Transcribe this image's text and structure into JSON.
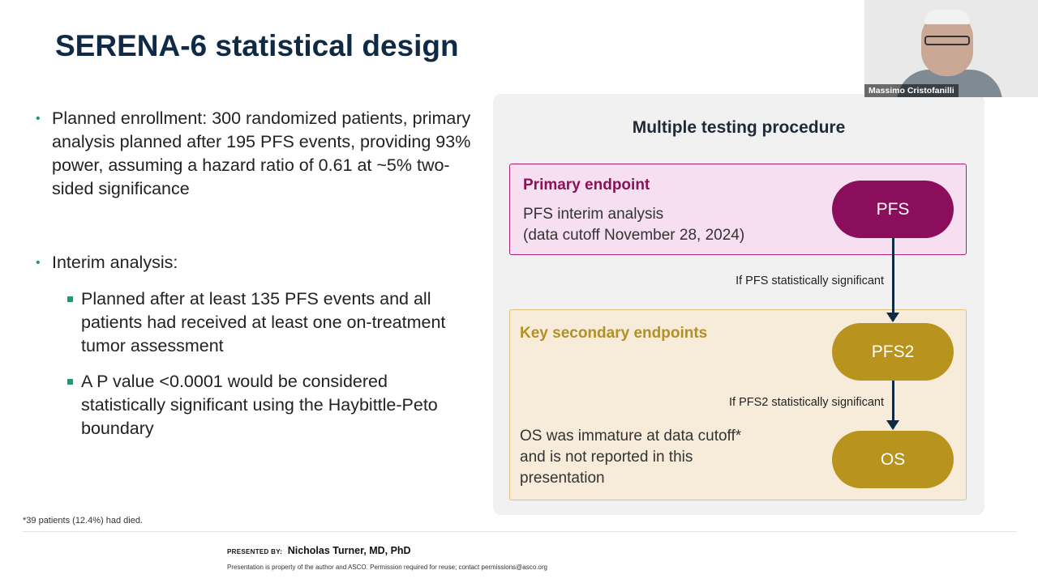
{
  "slide": {
    "title": "SERENA-6 statistical design",
    "bullets": {
      "b1": "Planned enrollment: 300 randomized patients, primary analysis planned after 195 PFS events, providing 93% power, assuming a hazard ratio of 0.61 at ~5% two-sided significance",
      "b2": "Interim analysis:",
      "sub1": "Planned after at least 135 PFS events and all patients had received at least one on-treatment tumor assessment",
      "sub2": "A P value <0.0001 would be considered statistically significant using the Haybittle-Peto boundary"
    },
    "footnote": "*39 patients (12.4%) had died."
  },
  "panel": {
    "title": "Multiple testing procedure",
    "primary_label": "Primary endpoint",
    "primary_line1": "PFS interim analysis",
    "primary_line2": "(data cutoff November 28, 2024)",
    "pfs": "PFS",
    "cond1": "If PFS statistically significant",
    "secondary_label": "Key secondary endpoints",
    "pfs2": "PFS2",
    "cond2": "If PFS2 statistically significant",
    "os": "OS",
    "os_note": "OS was immature at data cutoff* and is not reported in this presentation"
  },
  "video": {
    "name": "Massimo Cristofanilli"
  },
  "footer": {
    "presented_by_label": "PRESENTED BY:",
    "presenter": "Nicholas Turner, MD, PhD",
    "property": "Presentation is property of the author and ASCO. Permission required for reuse; contact permissions@asco.org"
  },
  "colors": {
    "title": "#0f2a44",
    "bullet": "#1f9a6b",
    "primary": "#8b0e5c",
    "secondary": "#b8931e"
  }
}
